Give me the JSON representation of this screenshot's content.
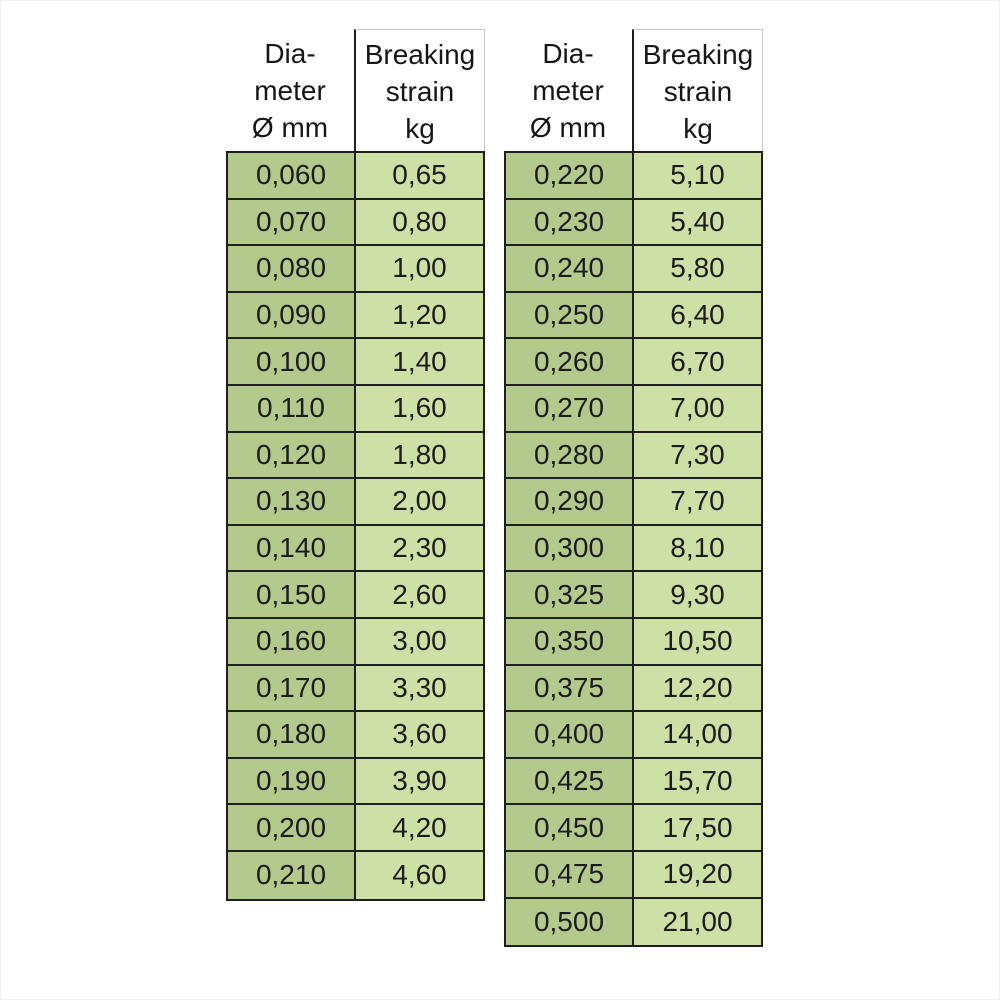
{
  "styles": {
    "column1_green": "#b4ca8c",
    "column2_green": "#cfe0a6",
    "border_dark": "#1f1f1f",
    "header_box_border": "#c9c9c9",
    "background": "#ffffff",
    "text_color": "#1a1a1a"
  },
  "chart_data": {
    "type": "table",
    "columns": [
      "Diameter Ø mm",
      "Breaking strain kg"
    ],
    "decimal_separator": ",",
    "tables": [
      {
        "header": {
          "col1": [
            "Dia-",
            "meter",
            "Ø mm"
          ],
          "col2": [
            "Breaking",
            "strain",
            "kg"
          ]
        },
        "rows": [
          [
            "0,060",
            "0,65"
          ],
          [
            "0,070",
            "0,80"
          ],
          [
            "0,080",
            "1,00"
          ],
          [
            "0,090",
            "1,20"
          ],
          [
            "0,100",
            "1,40"
          ],
          [
            "0,110",
            "1,60"
          ],
          [
            "0,120",
            "1,80"
          ],
          [
            "0,130",
            "2,00"
          ],
          [
            "0,140",
            "2,30"
          ],
          [
            "0,150",
            "2,60"
          ],
          [
            "0,160",
            "3,00"
          ],
          [
            "0,170",
            "3,30"
          ],
          [
            "0,180",
            "3,60"
          ],
          [
            "0,190",
            "3,90"
          ],
          [
            "0,200",
            "4,20"
          ],
          [
            "0,210",
            "4,60"
          ]
        ]
      },
      {
        "header": {
          "col1": [
            "Dia-",
            "meter",
            "Ø mm"
          ],
          "col2": [
            "Breaking",
            "strain",
            "kg"
          ]
        },
        "rows": [
          [
            "0,220",
            "5,10"
          ],
          [
            "0,230",
            "5,40"
          ],
          [
            "0,240",
            "5,80"
          ],
          [
            "0,250",
            "6,40"
          ],
          [
            "0,260",
            "6,70"
          ],
          [
            "0,270",
            "7,00"
          ],
          [
            "0,280",
            "7,30"
          ],
          [
            "0,290",
            "7,70"
          ],
          [
            "0,300",
            "8,10"
          ],
          [
            "0,325",
            "9,30"
          ],
          [
            "0,350",
            "10,50"
          ],
          [
            "0,375",
            "12,20"
          ],
          [
            "0,400",
            "14,00"
          ],
          [
            "0,425",
            "15,70"
          ],
          [
            "0,450",
            "17,50"
          ],
          [
            "0,475",
            "19,20"
          ],
          [
            "0,500",
            "21,00"
          ]
        ]
      }
    ]
  }
}
